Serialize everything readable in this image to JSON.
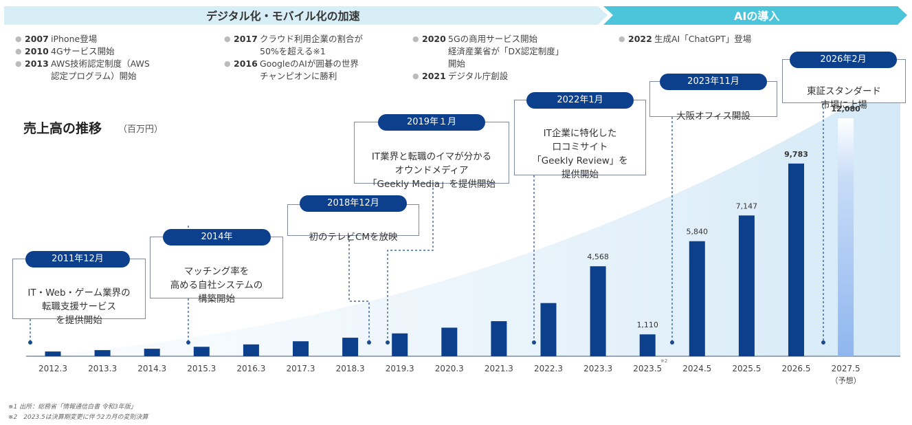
{
  "banner": {
    "left_label": "デジタル化・モバイル化の加速",
    "right_label": "AIの導入",
    "left_color": "#d8eef7",
    "right_color": "#4cc4da"
  },
  "history": {
    "col1": [
      {
        "year": "2007",
        "text": "iPhone登場"
      },
      {
        "year": "2010",
        "text": "4Gサービス開始"
      },
      {
        "year": "2013",
        "text": "AWS技術認定制度（AWS\n認定プログラム）開始"
      }
    ],
    "col2": [
      {
        "year": "2017",
        "text": "クラウド利用企業の割合が\n50%を超える※1"
      },
      {
        "year": "2016",
        "text": "GoogleのAIが囲碁の世界\nチャンピオンに勝利"
      }
    ],
    "col3": [
      {
        "year": "2020",
        "text": "5Gの商用サービス開始\n経済産業省が「DX認定制度」\n開始"
      },
      {
        "year": "2021",
        "text": "デジタル庁創設"
      }
    ],
    "col4": [
      {
        "year": "2022",
        "text": "生成AI「ChatGPT」登場"
      }
    ]
  },
  "chart_title": "売上高の推移",
  "chart_unit": "（百万円）",
  "callouts": [
    {
      "date": "2011年12月",
      "text": "IT・Web・ゲーム業界の\n転職支援サービス\nを提供開始"
    },
    {
      "date": "2014年",
      "text": "マッチング率を\n高める自社システムの\n構築開始"
    },
    {
      "date": "2018年12月",
      "text": "初のテレビCMを放映"
    },
    {
      "date": "2019年１月",
      "text": "IT業界と転職のイマが分かる\nオウンドメディア\n「Geekly Media」を提供開始"
    },
    {
      "date": "2022年1月",
      "text": "IT企業に特化した\n口コミサイト\n「Geekly Review」を\n提供開始"
    },
    {
      "date": "2023年11月",
      "text": "大阪オフィス開設"
    },
    {
      "date": "2026年2月",
      "text": "東証スタンダード\n市場に上場"
    }
  ],
  "chart_data": {
    "type": "bar",
    "categories": [
      "2012.3",
      "2013.3",
      "2014.3",
      "2015.3",
      "2016.3",
      "2017.3",
      "2018.3",
      "2019.3",
      "2020.3",
      "2021.3",
      "2022.3",
      "2023.3",
      "2023.5",
      "2024.5",
      "2025.5",
      "2026.5",
      "2027.5"
    ],
    "category_notes": {
      "12": "※2",
      "16": "（予想）"
    },
    "values": [
      240,
      310,
      380,
      480,
      600,
      760,
      940,
      1160,
      1450,
      1780,
      2700,
      4568,
      1110,
      5840,
      7147,
      9783,
      12080
    ],
    "value_labels": [
      "",
      "",
      "",
      "",
      "",
      "",
      "",
      "",
      "",
      "",
      "",
      "4,568",
      "1,110",
      "5,840",
      "7,147",
      "9,783",
      "12,080"
    ],
    "bold_labels": [
      15,
      16
    ],
    "forecast_index": 16,
    "ylim": [
      0,
      12500
    ],
    "bar_color": "#0c3f8c",
    "forecast_color": "#8fb6ef",
    "grid": false
  },
  "footnotes": [
    "※1 出所：総務省「情報通信白書 令和3年版」",
    "※2　2023.5は決算期変更に伴う2カ月の変則決算"
  ]
}
